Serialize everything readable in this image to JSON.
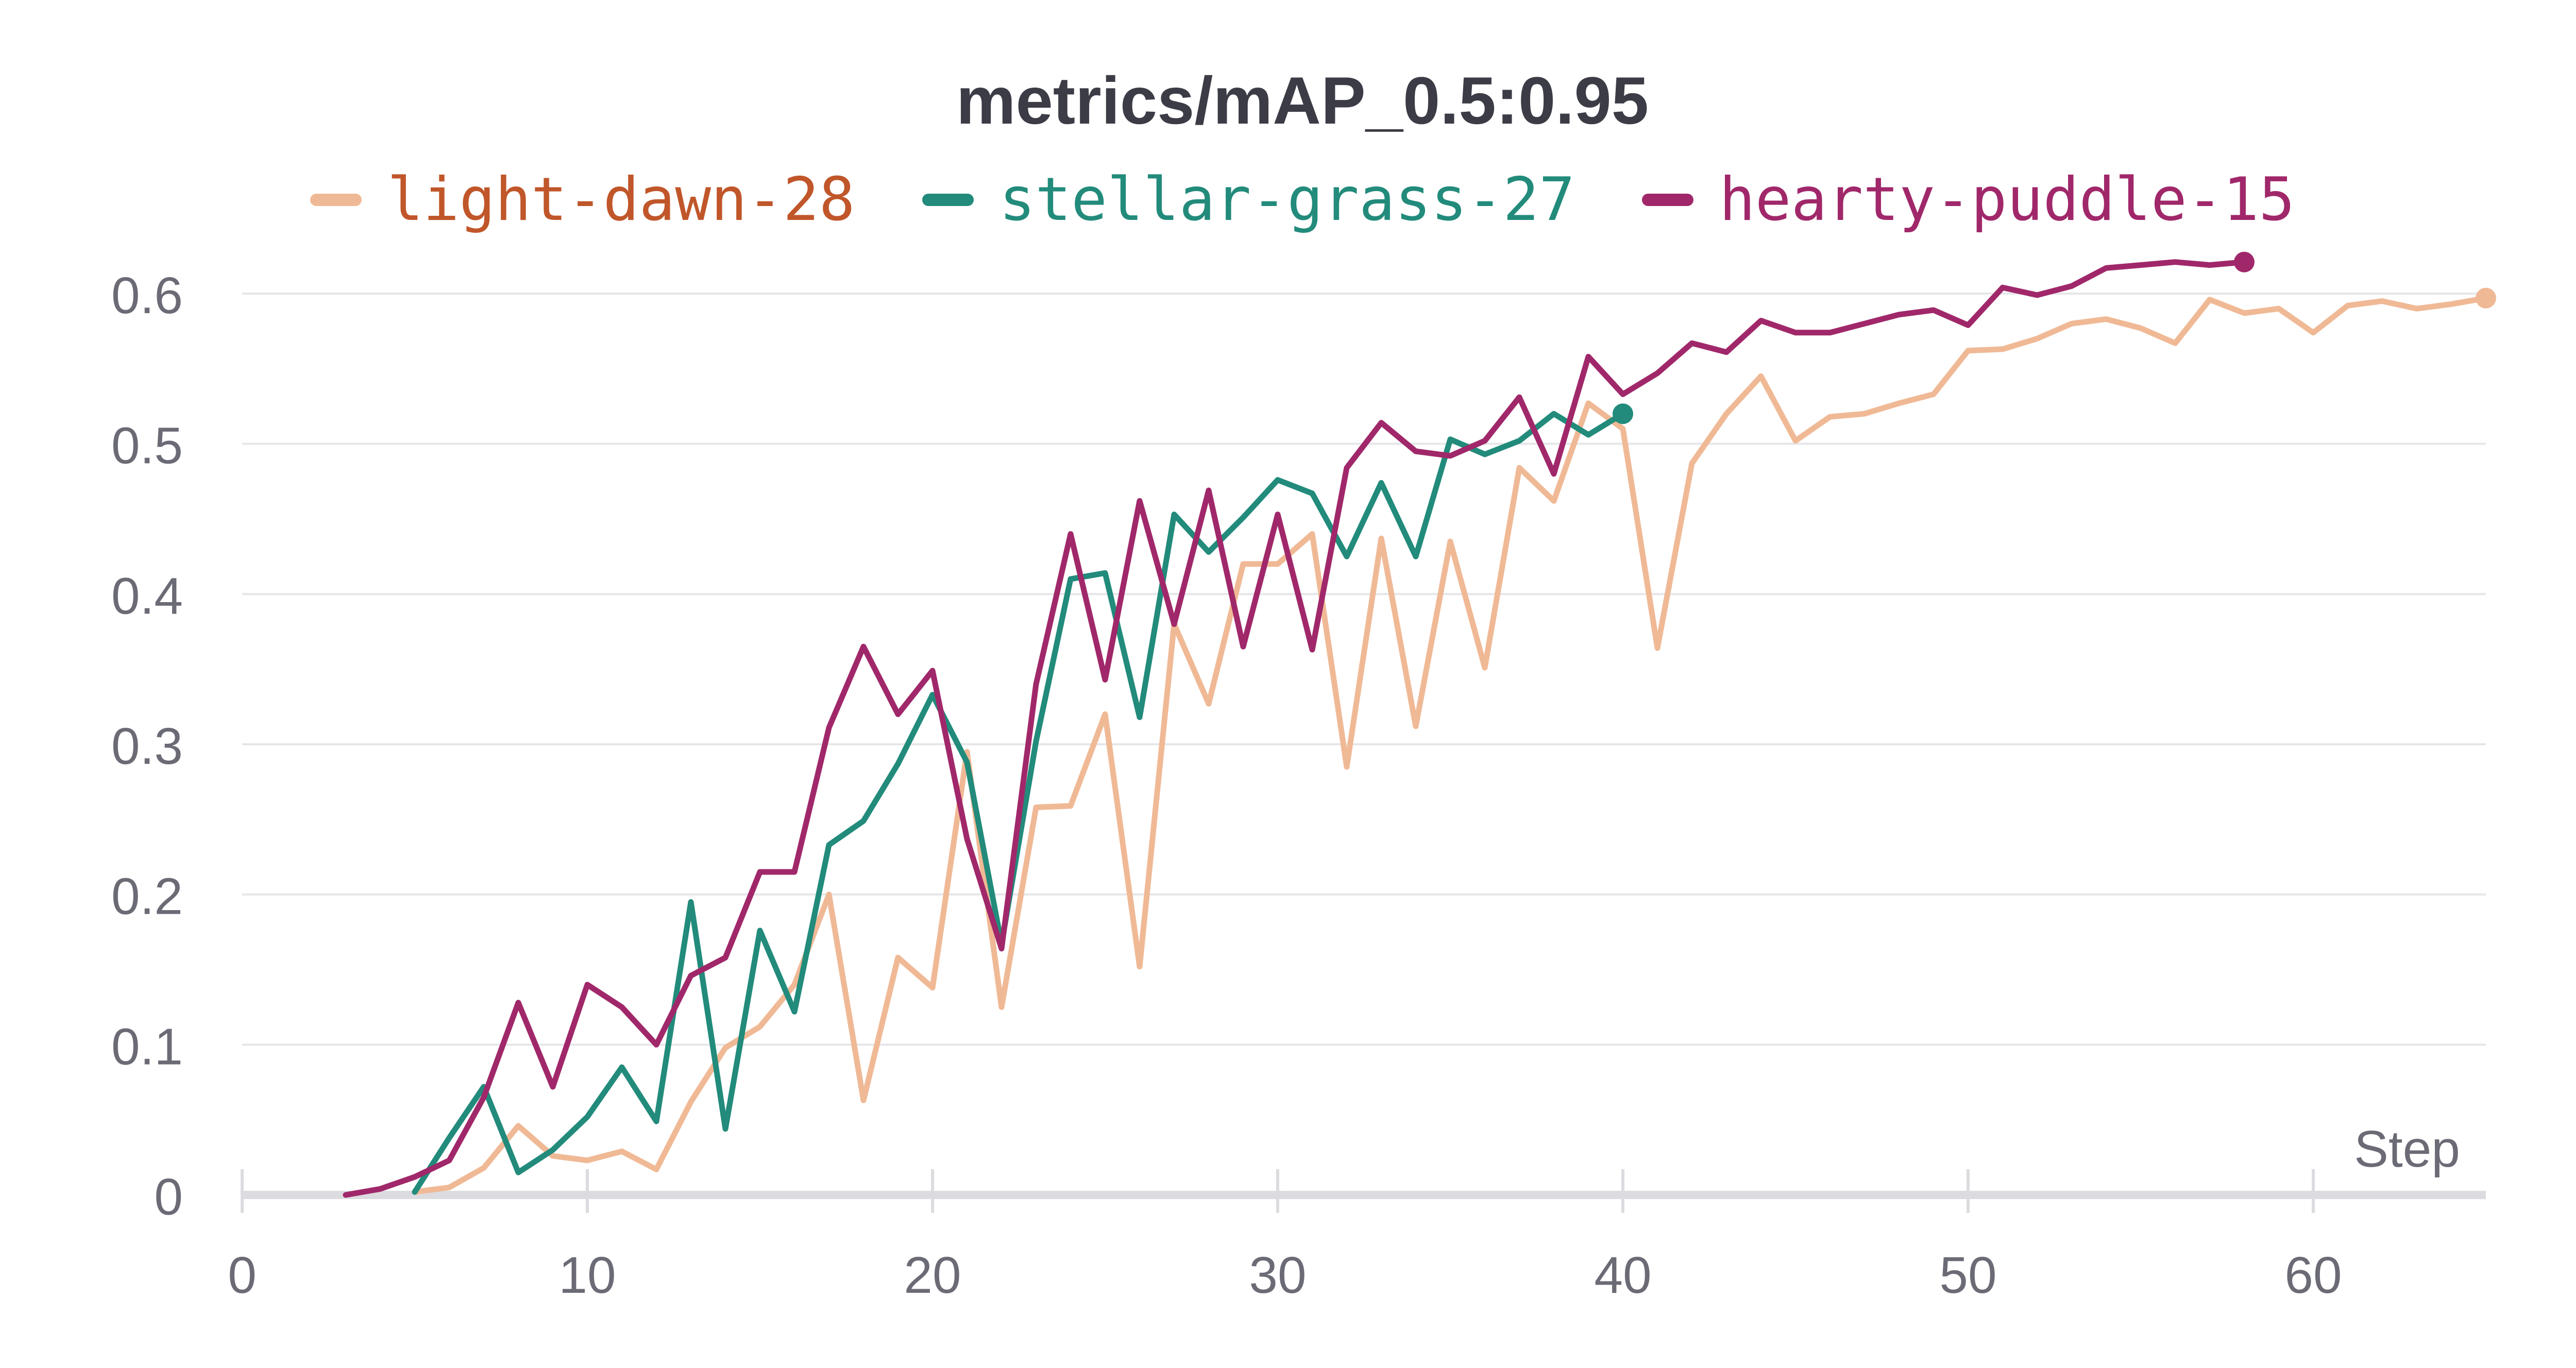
{
  "chart_data": {
    "type": "line",
    "title": "metrics/mAP_0.5:0.95",
    "xlabel": "Step",
    "ylabel": "",
    "xlim": [
      0,
      65
    ],
    "ylim": [
      0,
      0.6
    ],
    "xticks": [
      0,
      10,
      20,
      30,
      40,
      50,
      60
    ],
    "yticks": [
      0,
      0.1,
      0.2,
      0.3,
      0.4,
      0.5,
      0.6
    ],
    "ytick_labels": [
      "0",
      "0.1",
      "0.2",
      "0.3",
      "0.4",
      "0.5",
      "0.6"
    ],
    "grid": true,
    "legend_position": "top-center",
    "series": [
      {
        "name": "light-dawn-28",
        "color": "#f0b995",
        "label_color": "#c0562a",
        "x": [
          5,
          6,
          7,
          8,
          9,
          10,
          11,
          12,
          13,
          14,
          15,
          16,
          17,
          18,
          19,
          20,
          21,
          22,
          23,
          24,
          25,
          26,
          27,
          28,
          29,
          30,
          31,
          32,
          33,
          34,
          35,
          36,
          37,
          38,
          39,
          40,
          41,
          42,
          43,
          44,
          45,
          46,
          47,
          48,
          49,
          50,
          51,
          52,
          53,
          54,
          55,
          56,
          57,
          58,
          59,
          60,
          61,
          62,
          63,
          64,
          65
        ],
        "values": [
          0.002,
          0.005,
          0.018,
          0.046,
          0.026,
          0.023,
          0.029,
          0.017,
          0.062,
          0.098,
          0.112,
          0.14,
          0.2,
          0.063,
          0.158,
          0.138,
          0.295,
          0.125,
          0.258,
          0.259,
          0.32,
          0.152,
          0.38,
          0.327,
          0.42,
          0.42,
          0.44,
          0.285,
          0.437,
          0.312,
          0.435,
          0.351,
          0.484,
          0.462,
          0.527,
          0.51,
          0.364,
          0.487,
          0.52,
          0.545,
          0.502,
          0.518,
          0.52,
          0.527,
          0.533,
          0.562,
          0.563,
          0.57,
          0.58,
          0.583,
          0.577,
          0.567,
          0.596,
          0.587,
          0.59,
          0.574,
          0.592,
          0.595,
          0.59,
          0.593,
          0.597
        ]
      },
      {
        "name": "stellar-grass-27",
        "color": "#228b7b",
        "label_color": "#228b7b",
        "x": [
          5,
          6,
          7,
          8,
          9,
          10,
          11,
          12,
          13,
          14,
          15,
          16,
          17,
          18,
          19,
          20,
          21,
          22,
          23,
          24,
          25,
          26,
          27,
          28,
          29,
          30,
          31,
          32,
          33,
          34,
          35,
          36,
          37,
          38,
          39,
          40
        ],
        "values": [
          0.002,
          0.038,
          0.072,
          0.015,
          0.03,
          0.052,
          0.085,
          0.049,
          0.195,
          0.044,
          0.176,
          0.122,
          0.233,
          0.249,
          0.287,
          0.333,
          0.288,
          0.167,
          0.302,
          0.41,
          0.414,
          0.318,
          0.453,
          0.428,
          0.451,
          0.476,
          0.467,
          0.425,
          0.474,
          0.425,
          0.503,
          0.493,
          0.502,
          0.52,
          0.506,
          0.52
        ]
      },
      {
        "name": "hearty-puddle-15",
        "color": "#a0286a",
        "label_color": "#a0286a",
        "x": [
          3,
          4,
          5,
          6,
          7,
          8,
          9,
          10,
          11,
          12,
          13,
          14,
          15,
          16,
          17,
          18,
          19,
          20,
          21,
          22,
          23,
          24,
          25,
          26,
          27,
          28,
          29,
          30,
          31,
          32,
          33,
          34,
          35,
          36,
          37,
          38,
          39,
          40,
          41,
          42,
          43,
          44,
          45,
          46,
          47,
          48,
          49,
          50,
          51,
          52,
          53,
          54,
          55,
          56,
          57,
          58
        ],
        "values": [
          0.0,
          0.004,
          0.012,
          0.023,
          0.065,
          0.128,
          0.072,
          0.14,
          0.125,
          0.1,
          0.146,
          0.158,
          0.215,
          0.215,
          0.311,
          0.365,
          0.32,
          0.349,
          0.237,
          0.164,
          0.34,
          0.44,
          0.343,
          0.462,
          0.38,
          0.469,
          0.365,
          0.453,
          0.363,
          0.484,
          0.514,
          0.495,
          0.492,
          0.502,
          0.531,
          0.48,
          0.558,
          0.533,
          0.547,
          0.567,
          0.561,
          0.582,
          0.574,
          0.574,
          0.58,
          0.586,
          0.589,
          0.579,
          0.604,
          0.599,
          0.605,
          0.617,
          0.619,
          0.621,
          0.619,
          0.621
        ]
      }
    ]
  }
}
